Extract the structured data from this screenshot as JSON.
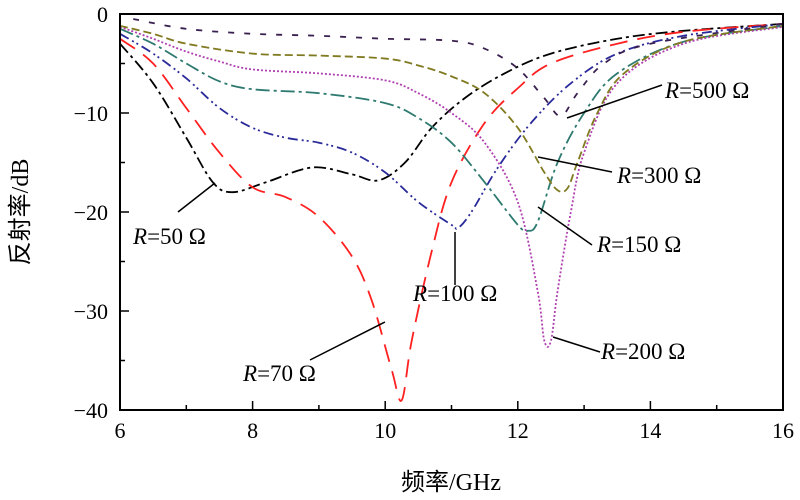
{
  "chart_data": {
    "type": "line",
    "title": "",
    "xlabel": "频率/GHz",
    "ylabel": "反射率/dB",
    "xlim": [
      6,
      16
    ],
    "ylim": [
      -40,
      0
    ],
    "xticks": [
      6,
      8,
      10,
      12,
      14,
      16
    ],
    "yticks": [
      0,
      -10,
      -20,
      -30,
      -40
    ],
    "grid": false,
    "series": [
      {
        "name": "R=50 Ω",
        "prefix": "R",
        "suffix": "=50 Ω",
        "color": "#000000",
        "x": [
          6,
          6.5,
          7,
          7.4,
          7.7,
          8.2,
          8.9,
          9.5,
          9.9,
          10.3,
          10.7,
          11.2,
          11.8,
          12.5,
          13.5,
          14.5,
          16
        ],
        "y": [
          -3,
          -7,
          -12.5,
          -17,
          -18,
          -17,
          -15.5,
          -16.2,
          -16.8,
          -15,
          -11.5,
          -8.5,
          -6,
          -4,
          -2.5,
          -1.7,
          -1
        ]
      },
      {
        "name": "R=70 Ω",
        "prefix": "R",
        "suffix": "=70 Ω",
        "color": "#ff2020",
        "x": [
          6,
          6.5,
          7,
          7.5,
          8,
          8.5,
          9,
          9.5,
          9.8,
          10.1,
          10.25,
          10.4,
          10.7,
          11,
          11.5,
          12,
          12.5,
          13.5,
          14.5,
          16
        ],
        "y": [
          -2.5,
          -5,
          -9.5,
          -14,
          -17.5,
          -18.5,
          -20.5,
          -24.5,
          -29,
          -36,
          -39,
          -33,
          -24,
          -17,
          -11,
          -7.5,
          -5,
          -3,
          -1.8,
          -1
        ]
      },
      {
        "name": "R=100 Ω",
        "prefix": "R",
        "suffix": "=100 Ω",
        "color": "#2a2a9a",
        "x": [
          6,
          6.5,
          7,
          7.5,
          8,
          8.5,
          9,
          9.5,
          10,
          10.5,
          11,
          11.1,
          11.3,
          11.7,
          12.2,
          12.8,
          13.5,
          14.5,
          16
        ],
        "y": [
          -2,
          -4,
          -6.5,
          -9.5,
          -11.5,
          -12.5,
          -13,
          -14,
          -16,
          -19,
          -21.3,
          -21.6,
          -20,
          -15.5,
          -11,
          -7,
          -4,
          -2.2,
          -1
        ]
      },
      {
        "name": "R=150 Ω",
        "prefix": "R",
        "suffix": "=150 Ω",
        "color": "#2e7a70",
        "x": [
          6,
          6.5,
          7,
          7.5,
          8,
          9,
          10,
          10.5,
          11,
          11.5,
          12,
          12.15,
          12.3,
          12.6,
          13,
          13.5,
          14.5,
          16
        ],
        "y": [
          -1.5,
          -3,
          -5,
          -6.8,
          -7.6,
          -8,
          -9,
          -10.5,
          -13,
          -17,
          -21.3,
          -21.9,
          -21,
          -15,
          -10,
          -6,
          -2.8,
          -1.2
        ]
      },
      {
        "name": "R=200 Ω",
        "prefix": "R",
        "suffix": "=200 Ω",
        "color": "#b040b0",
        "x": [
          6,
          6.5,
          7,
          7.5,
          8,
          9,
          10,
          10.5,
          11,
          11.5,
          12,
          12.3,
          12.4,
          12.5,
          12.6,
          12.8,
          13,
          13.5,
          14.5,
          16
        ],
        "y": [
          -1.3,
          -2.5,
          -3.8,
          -4.8,
          -5.6,
          -6,
          -6.7,
          -8,
          -10,
          -13,
          -19,
          -28,
          -33,
          -33,
          -28,
          -20,
          -14,
          -7,
          -3,
          -1.3
        ]
      },
      {
        "name": "R=300 Ω",
        "prefix": "R",
        "suffix": "=300 Ω",
        "color": "#807a20",
        "x": [
          6,
          6.5,
          7,
          8,
          9,
          10,
          10.5,
          11,
          11.5,
          12,
          12.4,
          12.6,
          12.75,
          12.9,
          13.2,
          13.6,
          14.5,
          16
        ],
        "y": [
          -1.2,
          -2,
          -3,
          -4,
          -4.2,
          -4.5,
          -5.2,
          -6.3,
          -8,
          -11.5,
          -16,
          -17.8,
          -17.6,
          -15,
          -10,
          -6,
          -2.8,
          -1.2
        ]
      },
      {
        "name": "R=500 Ω",
        "prefix": "R",
        "suffix": "=500 Ω",
        "color": "#3a2050",
        "x": [
          6.2,
          7,
          8,
          9,
          10,
          11,
          11.5,
          12,
          12.4,
          12.65,
          12.9,
          13.3,
          14,
          16
        ],
        "y": [
          -0.5,
          -1.5,
          -2,
          -2.2,
          -2.5,
          -2.7,
          -3.5,
          -5.5,
          -8.5,
          -10.3,
          -8,
          -5,
          -3,
          -1
        ]
      }
    ]
  }
}
